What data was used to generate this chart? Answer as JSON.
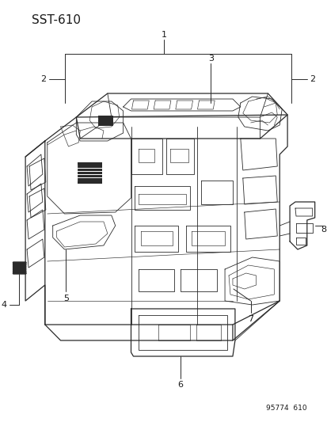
{
  "title": "SST-610",
  "footer": "95774  610",
  "bg_color": "#ffffff",
  "line_color": "#2a2a2a",
  "label_color": "#1a1a1a",
  "title_fontsize": 11,
  "label_fontsize": 8,
  "footer_fontsize": 6.5,
  "lw_main": 0.9,
  "lw_detail": 0.6,
  "lw_thin": 0.45,
  "fig_w": 4.14,
  "fig_h": 5.33,
  "dpi": 100
}
